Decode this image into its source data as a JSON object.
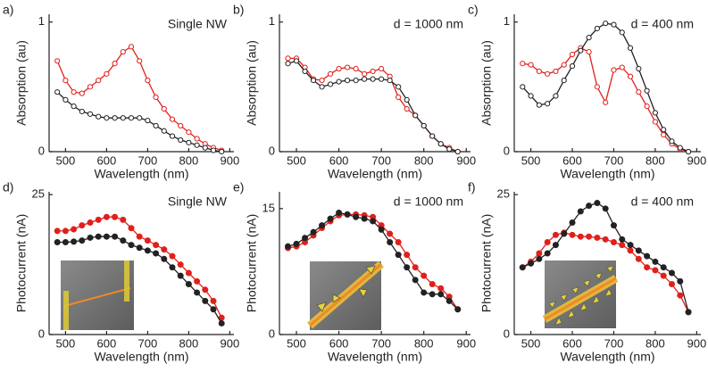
{
  "chart_data": [
    {
      "type": "line",
      "panel_label": "a)",
      "annotation": "Single NW",
      "x_label": "Wavelength (nm)",
      "y_label": "Absorption (au)",
      "marker": "open",
      "x": [
        480,
        500,
        520,
        540,
        560,
        580,
        600,
        620,
        640,
        660,
        680,
        700,
        720,
        740,
        760,
        780,
        800,
        820,
        840,
        860,
        880
      ],
      "series": [
        {
          "color": "#e0201b",
          "values": [
            0.7,
            0.55,
            0.46,
            0.45,
            0.5,
            0.55,
            0.6,
            0.68,
            0.77,
            0.81,
            0.7,
            0.55,
            0.42,
            0.33,
            0.25,
            0.2,
            0.15,
            0.1,
            0.06,
            0.03,
            0.01
          ]
        },
        {
          "color": "#222222",
          "values": [
            0.46,
            0.4,
            0.35,
            0.31,
            0.29,
            0.27,
            0.26,
            0.26,
            0.26,
            0.26,
            0.26,
            0.24,
            0.2,
            0.16,
            0.12,
            0.09,
            0.07,
            0.05,
            0.03,
            0.01,
            0
          ]
        }
      ],
      "xlim": [
        460,
        910
      ],
      "ylim": [
        0,
        1.06
      ],
      "xticks": [
        500,
        600,
        700,
        800,
        900
      ],
      "yticks": [
        0,
        1
      ]
    },
    {
      "type": "line",
      "panel_label": "b)",
      "annotation": "d = 1000 nm",
      "x_label": "Wavelength (nm)",
      "y_label": "Absorption (au)",
      "marker": "open",
      "x": [
        480,
        500,
        520,
        540,
        560,
        580,
        600,
        620,
        640,
        660,
        680,
        700,
        720,
        740,
        760,
        780,
        800,
        820,
        840,
        860,
        880
      ],
      "series": [
        {
          "color": "#e0201b",
          "values": [
            0.72,
            0.72,
            0.65,
            0.56,
            0.55,
            0.6,
            0.64,
            0.65,
            0.64,
            0.6,
            0.62,
            0.64,
            0.58,
            0.42,
            0.33,
            0.28,
            0.2,
            0.12,
            0.06,
            0.03,
            0
          ]
        },
        {
          "color": "#222222",
          "values": [
            0.68,
            0.7,
            0.62,
            0.55,
            0.5,
            0.52,
            0.54,
            0.55,
            0.55,
            0.56,
            0.56,
            0.56,
            0.55,
            0.5,
            0.4,
            0.28,
            0.2,
            0.12,
            0.06,
            0.02,
            0
          ]
        }
      ],
      "xlim": [
        460,
        910
      ],
      "ylim": [
        0,
        1.06
      ],
      "xticks": [
        500,
        600,
        700,
        800,
        900
      ],
      "yticks": [
        0,
        1
      ]
    },
    {
      "type": "line",
      "panel_label": "c)",
      "annotation": "d = 400 nm",
      "x_label": "Wavelength (nm)",
      "y_label": "Absorption (au)",
      "marker": "open",
      "x": [
        480,
        500,
        520,
        540,
        560,
        580,
        600,
        620,
        640,
        660,
        680,
        700,
        720,
        740,
        760,
        780,
        800,
        820,
        840,
        860,
        880
      ],
      "series": [
        {
          "color": "#e0201b",
          "values": [
            0.68,
            0.67,
            0.62,
            0.6,
            0.62,
            0.67,
            0.75,
            0.8,
            0.77,
            0.5,
            0.38,
            0.63,
            0.65,
            0.58,
            0.46,
            0.35,
            0.23,
            0.13,
            0.06,
            0.02,
            0
          ]
        },
        {
          "color": "#222222",
          "values": [
            0.5,
            0.43,
            0.36,
            0.37,
            0.43,
            0.55,
            0.66,
            0.78,
            0.88,
            0.95,
            0.99,
            0.98,
            0.92,
            0.8,
            0.64,
            0.47,
            0.3,
            0.17,
            0.08,
            0.03,
            0
          ]
        }
      ],
      "xlim": [
        460,
        910
      ],
      "ylim": [
        0,
        1.06
      ],
      "xticks": [
        500,
        600,
        700,
        800,
        900
      ],
      "yticks": [
        0,
        1
      ]
    },
    {
      "type": "line",
      "panel_label": "d)",
      "annotation": "Single NW",
      "x_label": "Wavelength (nm)",
      "y_label": "Photocurrent (nA)",
      "marker": "filled",
      "x": [
        480,
        500,
        520,
        540,
        560,
        580,
        600,
        620,
        640,
        660,
        680,
        700,
        720,
        740,
        760,
        780,
        800,
        820,
        840,
        860,
        880
      ],
      "series": [
        {
          "color": "#e0201b",
          "values": [
            18.5,
            18.5,
            18.8,
            19.5,
            20,
            20.5,
            21,
            21,
            20.5,
            19,
            17.5,
            16.8,
            16,
            15.2,
            14,
            12.5,
            11,
            9.5,
            8,
            6,
            3
          ]
        },
        {
          "color": "#222222",
          "values": [
            16.5,
            16.5,
            16.6,
            16.8,
            17.3,
            17.5,
            17.5,
            17.5,
            16.8,
            16,
            15.5,
            15,
            14.5,
            13.5,
            12,
            10.5,
            9,
            7.5,
            6,
            4.5,
            2
          ]
        }
      ],
      "xlim": [
        460,
        910
      ],
      "ylim": [
        0,
        25.5
      ],
      "xticks": [
        500,
        600,
        700,
        800,
        900
      ],
      "yticks": [
        0,
        25
      ]
    },
    {
      "type": "line",
      "panel_label": "e)",
      "annotation": "d = 1000 nm",
      "x_label": "Wavelength (nm)",
      "y_label": "Photocurrent (nA)",
      "marker": "filled",
      "x": [
        480,
        500,
        520,
        540,
        560,
        580,
        600,
        620,
        640,
        660,
        680,
        700,
        720,
        740,
        760,
        780,
        800,
        820,
        840,
        860,
        880
      ],
      "series": [
        {
          "color": "#e0201b",
          "values": [
            10.3,
            10.5,
            11,
            11.8,
            12.7,
            13.5,
            14.2,
            14.3,
            14.3,
            14.2,
            14,
            13,
            12,
            11,
            9.5,
            8,
            7,
            6,
            5.5,
            4.5,
            3
          ]
        },
        {
          "color": "#222222",
          "values": [
            10.5,
            10.8,
            11.5,
            12.2,
            13,
            13.8,
            14.5,
            14.3,
            14,
            13.8,
            13.5,
            12.5,
            11,
            9.5,
            8,
            6.5,
            5,
            4.8,
            4.8,
            4,
            3
          ]
        }
      ],
      "xlim": [
        460,
        910
      ],
      "ylim": [
        0,
        17
      ],
      "xticks": [
        500,
        600,
        700,
        800,
        900
      ],
      "yticks": [
        0,
        15
      ]
    },
    {
      "type": "line",
      "panel_label": "f)",
      "annotation": "d = 400 nm",
      "x_label": "Wavelength (nm)",
      "y_label": "Photocurrent (nA)",
      "marker": "filled",
      "x": [
        480,
        500,
        520,
        540,
        560,
        580,
        600,
        620,
        640,
        660,
        680,
        700,
        720,
        740,
        760,
        780,
        800,
        820,
        840,
        860,
        880
      ],
      "series": [
        {
          "color": "#e0201b",
          "values": [
            12,
            13,
            14.5,
            16.5,
            17.8,
            18.2,
            17.8,
            17.5,
            17.5,
            17.3,
            17,
            16.5,
            16,
            15,
            13.5,
            12,
            11.5,
            10.5,
            9,
            7,
            4
          ]
        },
        {
          "color": "#222222",
          "values": [
            12,
            12.7,
            13.5,
            14.5,
            16,
            18,
            20,
            22,
            23,
            23.5,
            22.5,
            19.5,
            17,
            16,
            15,
            14,
            13,
            12,
            11,
            9.5,
            4
          ]
        }
      ],
      "xlim": [
        460,
        910
      ],
      "ylim": [
        0,
        25.5
      ],
      "xticks": [
        500,
        600,
        700,
        800,
        900
      ],
      "yticks": [
        0,
        25
      ]
    }
  ]
}
